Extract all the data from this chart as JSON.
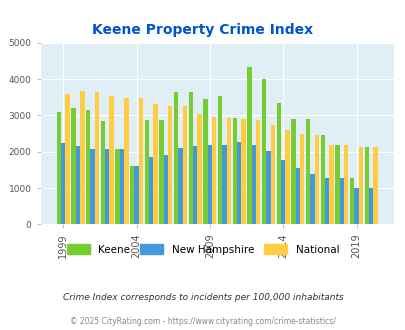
{
  "title": "Keene Property Crime Index",
  "years": [
    1999,
    2000,
    2001,
    2002,
    2003,
    2004,
    2005,
    2006,
    2007,
    2008,
    2009,
    2010,
    2011,
    2012,
    2013,
    2014,
    2015,
    2016,
    2017,
    2018,
    2019,
    2020
  ],
  "keene": [
    3100,
    3200,
    3150,
    2850,
    2080,
    1600,
    2870,
    2870,
    3650,
    3650,
    3450,
    3550,
    2920,
    4330,
    4000,
    3350,
    2900,
    2900,
    2450,
    2200,
    1280,
    2130
  ],
  "new_hampshire": [
    2250,
    2150,
    2080,
    2080,
    2080,
    1600,
    1870,
    1900,
    2100,
    2150,
    2180,
    2200,
    2280,
    2200,
    2010,
    1770,
    1550,
    1400,
    1280,
    1280,
    1000,
    1000
  ],
  "national": [
    3600,
    3680,
    3660,
    3550,
    3480,
    3480,
    3330,
    3250,
    3250,
    3050,
    2950,
    2920,
    2900,
    2870,
    2730,
    2600,
    2500,
    2460,
    2200,
    2200,
    2120,
    2120
  ],
  "keene_color": "#77cc33",
  "nh_color": "#4499dd",
  "nat_color": "#ffcc44",
  "bg_color": "#e0eff5",
  "fig_color": "#ffffff",
  "title_color": "#0055cc",
  "ylim": [
    0,
    5000
  ],
  "yticks": [
    0,
    1000,
    2000,
    3000,
    4000,
    5000
  ],
  "xtick_labels": [
    "1999",
    "2004",
    "2009",
    "2014",
    "2019"
  ],
  "subtitle": "Crime Index corresponds to incidents per 100,000 inhabitants",
  "footer": "© 2025 CityRating.com - https://www.cityrating.com/crime-statistics/",
  "legend_labels": [
    "Keene",
    "New Hampshire",
    "National"
  ]
}
